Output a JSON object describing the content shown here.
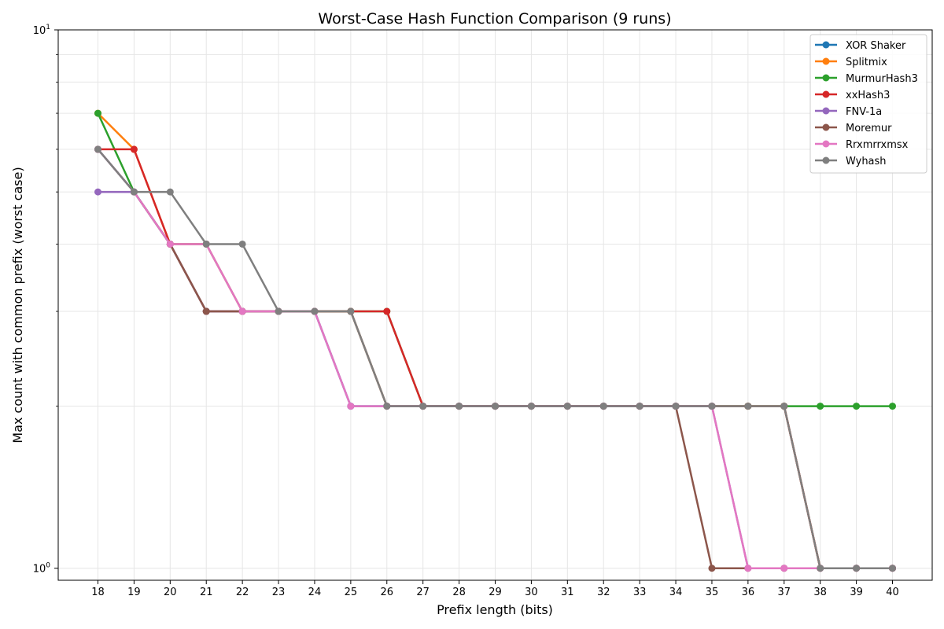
{
  "chart_data": {
    "type": "line",
    "title": "Worst-Case Hash Function Comparison (9 runs)",
    "xlabel": "Prefix length (bits)",
    "ylabel": "Max count with common prefix (worst case)",
    "yscale": "log",
    "ylim": [
      0.95,
      10
    ],
    "yticks": [
      {
        "value": 1,
        "base": "10",
        "exp": "0"
      },
      {
        "value": 10,
        "base": "10",
        "exp": "1"
      }
    ],
    "grid": true,
    "legend_position": "top-right",
    "x": [
      18,
      19,
      20,
      21,
      22,
      23,
      24,
      25,
      26,
      27,
      28,
      29,
      30,
      31,
      32,
      33,
      34,
      35,
      36,
      37,
      38,
      39,
      40
    ],
    "series": [
      {
        "name": "XOR Shaker",
        "color": "#1f77b4",
        "values": [
          6,
          5,
          4,
          4,
          3,
          3,
          3,
          2,
          2,
          2,
          2,
          2,
          2,
          2,
          2,
          2,
          2,
          2,
          2,
          2,
          1,
          1,
          1
        ]
      },
      {
        "name": "Splitmix",
        "color": "#ff7f0e",
        "values": [
          7,
          6,
          4,
          4,
          3,
          3,
          3,
          3,
          2,
          2,
          2,
          2,
          2,
          2,
          2,
          2,
          2,
          2,
          2,
          2,
          1,
          1,
          1
        ]
      },
      {
        "name": "MurmurHash3",
        "color": "#2ca02c",
        "values": [
          7,
          5,
          4,
          3,
          3,
          3,
          3,
          3,
          3,
          2,
          2,
          2,
          2,
          2,
          2,
          2,
          2,
          2,
          2,
          2,
          2,
          2,
          2
        ]
      },
      {
        "name": "xxHash3",
        "color": "#d62728",
        "values": [
          6,
          6,
          4,
          3,
          3,
          3,
          3,
          3,
          3,
          2,
          2,
          2,
          2,
          2,
          2,
          2,
          2,
          2,
          2,
          2,
          1,
          1,
          1
        ]
      },
      {
        "name": "FNV-1a",
        "color": "#9467bd",
        "values": [
          5,
          5,
          4,
          3,
          3,
          3,
          3,
          2,
          2,
          2,
          2,
          2,
          2,
          2,
          2,
          2,
          2,
          2,
          1,
          1,
          1,
          1,
          1
        ]
      },
      {
        "name": "Moremur",
        "color": "#8c564b",
        "values": [
          6,
          5,
          4,
          3,
          3,
          3,
          3,
          3,
          2,
          2,
          2,
          2,
          2,
          2,
          2,
          2,
          2,
          1,
          1,
          1,
          1,
          1,
          1
        ]
      },
      {
        "name": "Rrxmrrxmsx",
        "color": "#e377c2",
        "values": [
          6,
          5,
          4,
          4,
          3,
          3,
          3,
          2,
          2,
          2,
          2,
          2,
          2,
          2,
          2,
          2,
          2,
          2,
          1,
          1,
          1,
          1,
          1
        ]
      },
      {
        "name": "Wyhash",
        "color": "#7f7f7f",
        "values": [
          6,
          5,
          5,
          4,
          4,
          3,
          3,
          3,
          2,
          2,
          2,
          2,
          2,
          2,
          2,
          2,
          2,
          2,
          2,
          2,
          1,
          1,
          1
        ]
      }
    ]
  }
}
